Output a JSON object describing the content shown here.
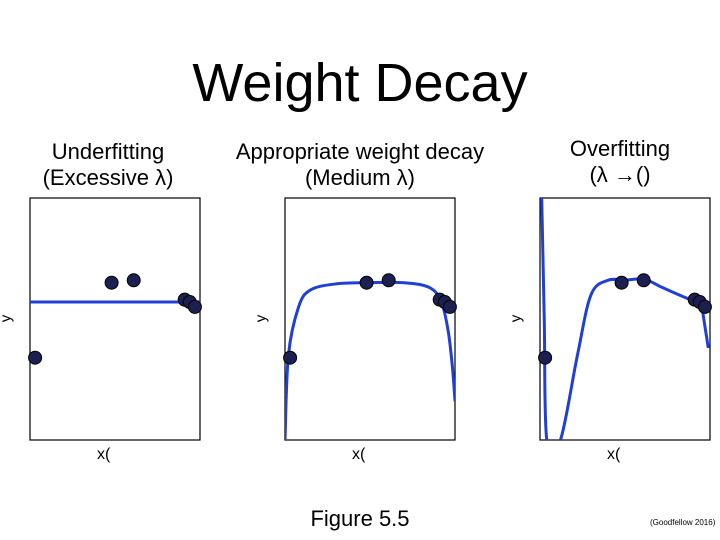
{
  "title": "Weight Decay",
  "caption": "Figure 5.5",
  "credit": "(Goodfellow 2016)",
  "chart_data": [
    {
      "type": "scatter",
      "title": "Underfitting\n(Excessive λ)",
      "xlabel": "x(",
      "ylabel": "y",
      "xlim": [
        0,
        1
      ],
      "ylim": [
        0,
        1
      ],
      "points": [
        {
          "x": 0.03,
          "y": 0.34
        },
        {
          "x": 0.48,
          "y": 0.65
        },
        {
          "x": 0.61,
          "y": 0.66
        },
        {
          "x": 0.91,
          "y": 0.58
        },
        {
          "x": 0.94,
          "y": 0.57
        },
        {
          "x": 0.97,
          "y": 0.55
        }
      ],
      "fit": {
        "kind": "constant",
        "value": 0.57
      },
      "line_color": "#1f3fd6",
      "point_color": "#1c2050"
    },
    {
      "type": "scatter",
      "title": "Appropriate weight decay\n(Medium λ)",
      "xlabel": "x(",
      "ylabel": "y",
      "xlim": [
        0,
        1
      ],
      "ylim": [
        0,
        1
      ],
      "points": [
        {
          "x": 0.03,
          "y": 0.34
        },
        {
          "x": 0.48,
          "y": 0.65
        },
        {
          "x": 0.61,
          "y": 0.66
        },
        {
          "x": 0.91,
          "y": 0.58
        },
        {
          "x": 0.94,
          "y": 0.57
        },
        {
          "x": 0.97,
          "y": 0.55
        }
      ],
      "fit": {
        "kind": "smooth",
        "curve": [
          [
            0.0,
            0.0
          ],
          [
            0.02,
            0.35
          ],
          [
            0.08,
            0.55
          ],
          [
            0.15,
            0.62
          ],
          [
            0.3,
            0.645
          ],
          [
            0.5,
            0.65
          ],
          [
            0.7,
            0.65
          ],
          [
            0.85,
            0.63
          ],
          [
            0.92,
            0.57
          ],
          [
            0.96,
            0.45
          ],
          [
            0.985,
            0.3
          ],
          [
            1.0,
            0.16
          ]
        ]
      },
      "line_color": "#1f3fd6",
      "point_color": "#1c2050"
    },
    {
      "type": "scatter",
      "title": "Overfitting\n(λ →()",
      "xlabel": "x(",
      "ylabel": "y",
      "xlim": [
        0,
        1
      ],
      "ylim": [
        0,
        1
      ],
      "points": [
        {
          "x": 0.03,
          "y": 0.34
        },
        {
          "x": 0.48,
          "y": 0.65
        },
        {
          "x": 0.61,
          "y": 0.66
        },
        {
          "x": 0.91,
          "y": 0.58
        },
        {
          "x": 0.94,
          "y": 0.57
        },
        {
          "x": 0.97,
          "y": 0.55
        }
      ],
      "fit": {
        "kind": "oscillating",
        "curve": [
          [
            0.01,
            1.0
          ],
          [
            0.025,
            0.5
          ],
          [
            0.04,
            0.0
          ],
          [
            0.12,
            0.0
          ],
          [
            0.22,
            0.35
          ],
          [
            0.3,
            0.6
          ],
          [
            0.4,
            0.66
          ],
          [
            0.5,
            0.66
          ],
          [
            0.61,
            0.665
          ],
          [
            0.72,
            0.63
          ],
          [
            0.85,
            0.59
          ],
          [
            0.92,
            0.57
          ],
          [
            0.95,
            0.55
          ],
          [
            0.97,
            0.47
          ],
          [
            0.99,
            0.38
          ]
        ]
      },
      "line_color": "#1f3fd6",
      "point_color": "#1c2050"
    }
  ]
}
